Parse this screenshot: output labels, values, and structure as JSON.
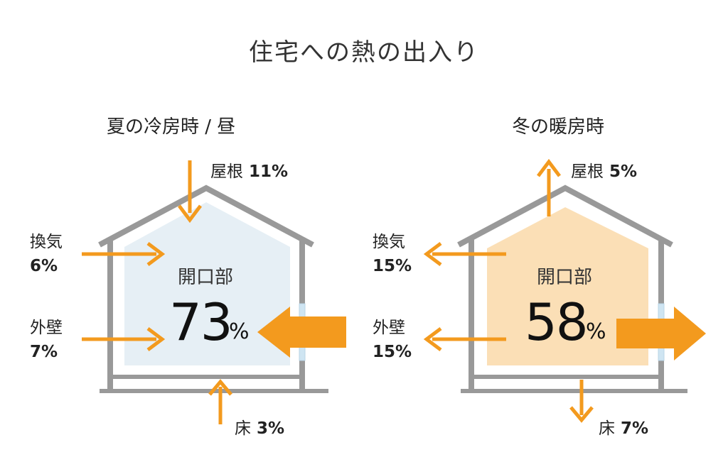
{
  "title": "住宅への熱の出入り",
  "colors": {
    "arrow": "#f39a1e",
    "house_wall": "#999999",
    "summer_fill": "#e6eff5",
    "winter_fill": "#fbdfb6",
    "window": "#cfe5f2"
  },
  "panels": [
    {
      "title": "夏の冷房時 / 昼",
      "center_label": "開口部",
      "center_value": "73",
      "center_unit": "%",
      "labels": {
        "roof": {
          "name": "屋根",
          "value": "11%"
        },
        "vent": {
          "name": "換気",
          "value": "6%"
        },
        "wall": {
          "name": "外壁",
          "value": "7%"
        },
        "floor": {
          "name": "床",
          "value": "3%"
        }
      },
      "direction": "in"
    },
    {
      "title": "冬の暖房時",
      "center_label": "開口部",
      "center_value": "58",
      "center_unit": "%",
      "labels": {
        "roof": {
          "name": "屋根",
          "value": "5%"
        },
        "vent": {
          "name": "換気",
          "value": "15%"
        },
        "wall": {
          "name": "外壁",
          "value": "15%"
        },
        "floor": {
          "name": "床",
          "value": "7%"
        }
      },
      "direction": "out"
    }
  ]
}
